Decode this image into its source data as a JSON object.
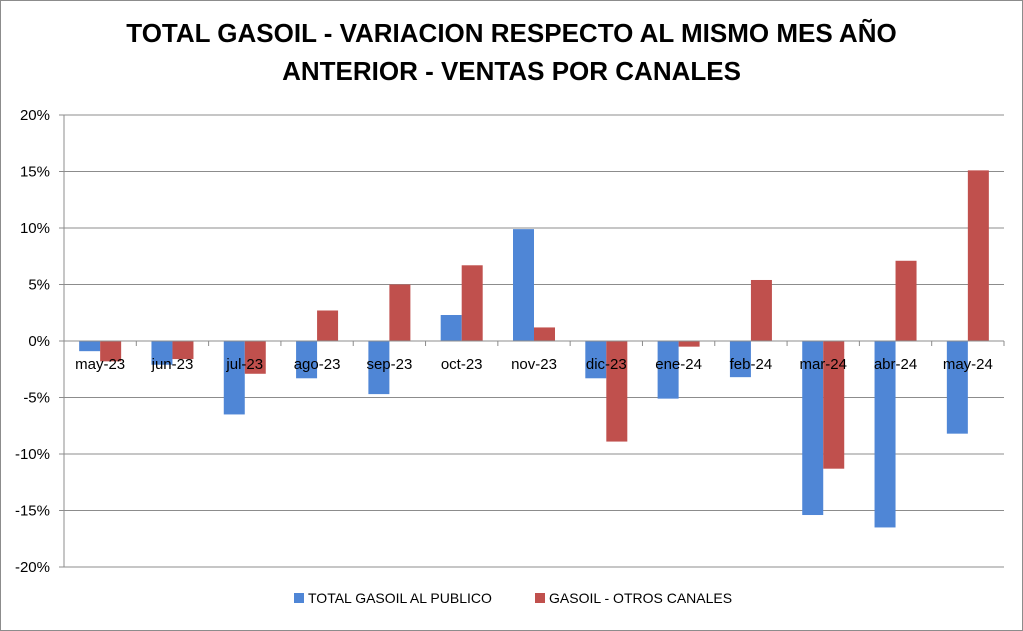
{
  "chart_data": {
    "type": "bar",
    "title_line1": "TOTAL GASOIL - VARIACION RESPECTO AL MISMO MES AÑO",
    "title_line2": "ANTERIOR - VENTAS POR CANALES",
    "categories": [
      "may-23",
      "jun-23",
      "jul-23",
      "ago-23",
      "sep-23",
      "oct-23",
      "nov-23",
      "dic-23",
      "ene-24",
      "feb-24",
      "mar-24",
      "abr-24",
      "may-24"
    ],
    "series": [
      {
        "name": "TOTAL GASOIL AL PUBLICO",
        "color": "#4f86d6",
        "values": [
          -0.9,
          -2.1,
          -6.5,
          -3.3,
          -4.7,
          2.3,
          9.9,
          -3.3,
          -5.1,
          -3.2,
          -15.4,
          -16.5,
          -8.2
        ]
      },
      {
        "name": "GASOIL - OTROS CANALES",
        "color": "#c0504d",
        "values": [
          -1.8,
          -1.6,
          -2.9,
          2.7,
          5.0,
          6.7,
          1.2,
          -8.9,
          -0.5,
          5.4,
          -11.3,
          7.1,
          15.1
        ]
      }
    ],
    "ylim": [
      -20,
      20
    ],
    "yticks": [
      20,
      15,
      10,
      5,
      0,
      -5,
      -10,
      -15,
      -20
    ],
    "ytick_labels": [
      "20%",
      "15%",
      "10%",
      "5%",
      "0%",
      "-5%",
      "-10%",
      "-15%",
      "-20%"
    ],
    "grid": true,
    "legend": "bottom"
  }
}
